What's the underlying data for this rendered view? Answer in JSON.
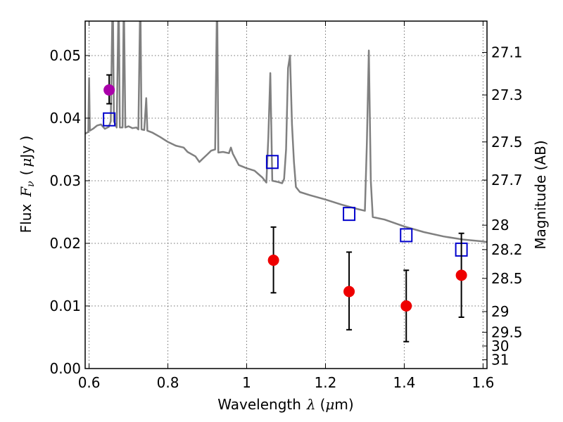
{
  "chart_data": {
    "type": "scatter",
    "xlabel_prefix": "Wavelength",
    "xlabel_symbol": "λ",
    "xlabel_unit_open": "(",
    "xlabel_unit_mu": "μ",
    "xlabel_unit_rest": "m)",
    "ylabel_prefix": "Flux",
    "ylabel_symbol_F": "F",
    "ylabel_symbol_sub": "ν",
    "ylabel_unit_open": "(",
    "ylabel_unit_mu": "μ",
    "ylabel_unit_rest": "Jy )",
    "ylabel_right": "Magnitude (AB)",
    "xlim": [
      0.59,
      1.61
    ],
    "ylim": [
      0.0,
      0.0555
    ],
    "x_ticks": [
      0.6,
      0.8,
      1.0,
      1.2,
      1.4,
      1.6
    ],
    "x_tick_labels": [
      "0.6",
      "0.8",
      "1",
      "1.2",
      "1.4",
      "1.6"
    ],
    "y_ticks": [
      0.0,
      0.01,
      0.02,
      0.03,
      0.04,
      0.05
    ],
    "y_tick_labels": [
      "0.00",
      "0.01",
      "0.02",
      "0.03",
      "0.04",
      "0.05"
    ],
    "right_ticks": [
      {
        "label": "27.1",
        "flux": 0.0505
      },
      {
        "label": "27.3",
        "flux": 0.0437
      },
      {
        "label": "27.5",
        "flux": 0.0362
      },
      {
        "label": "27.7",
        "flux": 0.0301
      },
      {
        "label": "28",
        "flux": 0.0229
      },
      {
        "label": "28.2",
        "flux": 0.019
      },
      {
        "label": "28.5",
        "flux": 0.0144
      },
      {
        "label": "29",
        "flux": 0.0091
      },
      {
        "label": "29.5",
        "flux": 0.0058
      },
      {
        "label": "30",
        "flux": 0.0036
      },
      {
        "label": "31",
        "flux": 0.0014
      }
    ],
    "grid": true,
    "series": [
      {
        "kind": "line",
        "color": "#808080",
        "points": [
          [
            0.59,
            0.0375
          ],
          [
            0.598,
            0.0378
          ],
          [
            0.6,
            0.0464
          ],
          [
            0.602,
            0.038
          ],
          [
            0.61,
            0.0383
          ],
          [
            0.62,
            0.0388
          ],
          [
            0.63,
            0.039
          ],
          [
            0.64,
            0.0383
          ],
          [
            0.65,
            0.0386
          ],
          [
            0.655,
            0.0395
          ],
          [
            0.66,
            0.061
          ],
          [
            0.663,
            0.0395
          ],
          [
            0.67,
            0.0385
          ],
          [
            0.675,
            0.06
          ],
          [
            0.678,
            0.0385
          ],
          [
            0.685,
            0.0385
          ],
          [
            0.688,
            0.06
          ],
          [
            0.692,
            0.0385
          ],
          [
            0.7,
            0.0387
          ],
          [
            0.71,
            0.0384
          ],
          [
            0.72,
            0.0385
          ],
          [
            0.725,
            0.0382
          ],
          [
            0.73,
            0.06
          ],
          [
            0.733,
            0.0382
          ],
          [
            0.74,
            0.0381
          ],
          [
            0.745,
            0.0432
          ],
          [
            0.748,
            0.038
          ],
          [
            0.76,
            0.0377
          ],
          [
            0.78,
            0.037
          ],
          [
            0.8,
            0.0362
          ],
          [
            0.82,
            0.0356
          ],
          [
            0.84,
            0.0353
          ],
          [
            0.85,
            0.0346
          ],
          [
            0.87,
            0.0339
          ],
          [
            0.88,
            0.033
          ],
          [
            0.89,
            0.0336
          ],
          [
            0.9,
            0.0342
          ],
          [
            0.91,
            0.0348
          ],
          [
            0.92,
            0.035
          ],
          [
            0.925,
            0.06
          ],
          [
            0.928,
            0.0345
          ],
          [
            0.94,
            0.0346
          ],
          [
            0.955,
            0.0344
          ],
          [
            0.96,
            0.0353
          ],
          [
            0.965,
            0.0343
          ],
          [
            0.98,
            0.0325
          ],
          [
            1.0,
            0.032
          ],
          [
            1.02,
            0.0316
          ],
          [
            1.04,
            0.0305
          ],
          [
            1.05,
            0.0297
          ],
          [
            1.055,
            0.037
          ],
          [
            1.06,
            0.0472
          ],
          [
            1.065,
            0.03
          ],
          [
            1.08,
            0.0298
          ],
          [
            1.09,
            0.0296
          ],
          [
            1.095,
            0.0303
          ],
          [
            1.1,
            0.035
          ],
          [
            1.105,
            0.048
          ],
          [
            1.11,
            0.05
          ],
          [
            1.115,
            0.039
          ],
          [
            1.12,
            0.033
          ],
          [
            1.125,
            0.029
          ],
          [
            1.135,
            0.0282
          ],
          [
            1.16,
            0.0277
          ],
          [
            1.2,
            0.027
          ],
          [
            1.24,
            0.0262
          ],
          [
            1.28,
            0.0255
          ],
          [
            1.3,
            0.0252
          ],
          [
            1.305,
            0.036
          ],
          [
            1.31,
            0.0508
          ],
          [
            1.315,
            0.03
          ],
          [
            1.32,
            0.0242
          ],
          [
            1.35,
            0.0238
          ],
          [
            1.4,
            0.0227
          ],
          [
            1.45,
            0.0218
          ],
          [
            1.5,
            0.0211
          ],
          [
            1.55,
            0.0206
          ],
          [
            1.6,
            0.0203
          ],
          [
            1.61,
            0.0202
          ]
        ]
      },
      {
        "kind": "markers",
        "shape": "open-square",
        "color": "#0000cc",
        "x": [
          0.651,
          1.065,
          1.26,
          1.405,
          1.545
        ],
        "y": [
          0.0398,
          0.033,
          0.0247,
          0.0213,
          0.019
        ]
      },
      {
        "kind": "markers",
        "shape": "filled-circle",
        "color": "#ee0000",
        "x": [
          1.068,
          1.26,
          1.405,
          1.545
        ],
        "y": [
          0.0173,
          0.0123,
          0.01,
          0.0149
        ],
        "yerr_low": [
          0.0121,
          0.0062,
          0.0043,
          0.0082
        ],
        "yerr_high": [
          0.0226,
          0.0186,
          0.0157,
          0.0216
        ]
      },
      {
        "kind": "markers",
        "shape": "filled-circle",
        "color": "#aa00aa",
        "x": [
          0.651
        ],
        "y": [
          0.0445
        ],
        "yerr_low": [
          0.0423
        ],
        "yerr_high": [
          0.0469
        ]
      }
    ]
  }
}
